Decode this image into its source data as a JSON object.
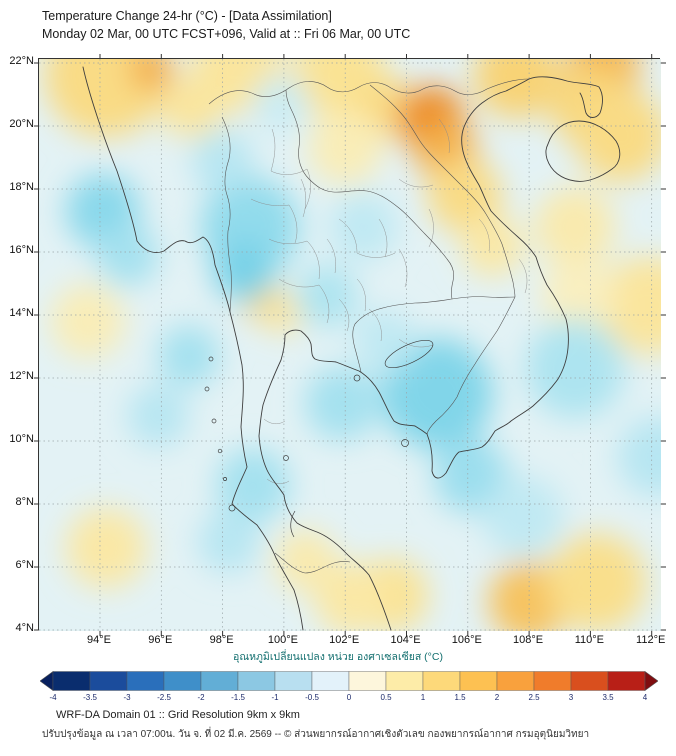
{
  "header": {
    "title": "Temperature Change 24-hr (°C) - [Data Assimilation]",
    "subtitle": "Monday 02 Mar, 00 UTC FCST+096, Valid at :: Fri 06 Mar, 00 UTC"
  },
  "map": {
    "lat_labels": [
      "22°N",
      "20°N",
      "18°N",
      "16°N",
      "14°N",
      "12°N",
      "10°N",
      "8°N",
      "6°N",
      "4°N"
    ],
    "lon_labels": [
      "94°E",
      "96°E",
      "98°E",
      "100°E",
      "102°E",
      "104°E",
      "106°E",
      "108°E",
      "110°E",
      "112°E"
    ]
  },
  "colorbar": {
    "title": "อุณหภูมิเปลี่ยนแปลง หน่วย องศาเซลเซียส (°C)",
    "unit": "°C",
    "range_min": "-4",
    "range_max": "4",
    "tick_labels": [
      "-4",
      "-3.5",
      "-3",
      "-2.5",
      "-2",
      "-1.5",
      "-1",
      "-0.5",
      "0",
      "0.5",
      "1",
      "1.5",
      "2",
      "2.5",
      "3",
      "3.5",
      "4"
    ],
    "arrow_left_color": "#08205e",
    "arrow_right_color": "#7f0d10",
    "segment_colors": [
      "#0a2d6e",
      "#1b4c9c",
      "#2a6fbb",
      "#3f8fc9",
      "#62aed6",
      "#8cc8e3",
      "#b8dff0",
      "#e3f2fa",
      "#fdf6dc",
      "#fdeca8",
      "#fdd97a",
      "#fdc152",
      "#f9a13d",
      "#f07c2b",
      "#d94f1e",
      "#b81f17"
    ]
  },
  "footer": {
    "line1": "WRF-DA Domain 01 :: Grid Resolution 9km x 9km",
    "line2": "ปรับปรุงข้อมูล ณ เวลา 07:00น. วัน จ. ที่ 02 มี.ค. 2569 -- © ส่วนพยากรณ์อากาศเชิงตัวเลข กองพยากรณ์อากาศ กรมอุตุนิยมวิทยา"
  },
  "chart_data": {
    "type": "heatmap",
    "title": "Temperature Change 24-hr (°C)",
    "model": "WRF-DA Domain 01",
    "valid_at": "Fri 06 Mar, 00 UTC",
    "lon_range": [
      92.0,
      112.3
    ],
    "lat_range": [
      4.0,
      22.1
    ],
    "grid_step_deg": 2,
    "value_range": [
      -4,
      4
    ],
    "base_value": 0,
    "base_color": "#e3f2f5",
    "field_palette": [
      [
        -1.5,
        "#6fcfe6"
      ],
      [
        -1.0,
        "#9bdeee"
      ],
      [
        -0.5,
        "#c9ecf4"
      ],
      [
        0,
        "#e7f4f1"
      ],
      [
        0.5,
        "#f9efc0"
      ],
      [
        1.0,
        "#fae394"
      ],
      [
        1.5,
        "#f7cf6e"
      ],
      [
        2.0,
        "#f4b14b"
      ],
      [
        2.5,
        "#ef952f"
      ],
      [
        3.0,
        "#e97f16"
      ]
    ],
    "anomalies": [
      {
        "lon": 94.2,
        "lat": 21.6,
        "value": 1.2,
        "radius_deg": 2.0
      },
      {
        "lon": 95.7,
        "lat": 21.8,
        "value": 2.1,
        "radius_deg": 0.7
      },
      {
        "lon": 98.5,
        "lat": 21.9,
        "value": 0.9,
        "radius_deg": 1.5
      },
      {
        "lon": 101.8,
        "lat": 21.7,
        "value": 1.0,
        "radius_deg": 1.5
      },
      {
        "lon": 103.3,
        "lat": 20.6,
        "value": 1.2,
        "radius_deg": 1.0
      },
      {
        "lon": 102.0,
        "lat": 19.3,
        "value": 0.6,
        "radius_deg": 1.2
      },
      {
        "lon": 104.8,
        "lat": 20.2,
        "value": 2.7,
        "radius_deg": 1.1
      },
      {
        "lon": 105.3,
        "lat": 19.2,
        "value": 2.0,
        "radius_deg": 1.0
      },
      {
        "lon": 105.9,
        "lat": 17.8,
        "value": 1.2,
        "radius_deg": 1.2
      },
      {
        "lon": 107.6,
        "lat": 21.6,
        "value": 1.4,
        "radius_deg": 1.4
      },
      {
        "lon": 110.4,
        "lat": 21.9,
        "value": 1.9,
        "radius_deg": 1.2
      },
      {
        "lon": 110.0,
        "lat": 20.6,
        "value": 1.3,
        "radius_deg": 1.3
      },
      {
        "lon": 111.0,
        "lat": 19.7,
        "value": 1.2,
        "radius_deg": 1.5
      },
      {
        "lon": 109.5,
        "lat": 16.8,
        "value": 0.7,
        "radius_deg": 1.3
      },
      {
        "lon": 111.9,
        "lat": 14.3,
        "value": 0.9,
        "radius_deg": 1.6
      },
      {
        "lon": 109.6,
        "lat": 14.6,
        "value": 0.5,
        "radius_deg": 1.2
      },
      {
        "lon": 106.8,
        "lat": 16.2,
        "value": 0.8,
        "radius_deg": 1.0
      },
      {
        "lon": 99.3,
        "lat": 14.5,
        "value": 1.3,
        "radius_deg": 0.7
      },
      {
        "lon": 100.0,
        "lat": 14.0,
        "value": 0.9,
        "radius_deg": 0.6
      },
      {
        "lon": 93.6,
        "lat": 13.8,
        "value": 0.6,
        "radius_deg": 1.2
      },
      {
        "lon": 97.0,
        "lat": 20.6,
        "value": 0.9,
        "radius_deg": 1.0
      },
      {
        "lon": 108.0,
        "lat": 4.9,
        "value": 1.7,
        "radius_deg": 1.3
      },
      {
        "lon": 110.2,
        "lat": 5.5,
        "value": 1.1,
        "radius_deg": 1.6
      },
      {
        "lon": 103.5,
        "lat": 5.1,
        "value": 1.0,
        "radius_deg": 1.2
      },
      {
        "lon": 102.2,
        "lat": 5.0,
        "value": 0.8,
        "radius_deg": 1.2
      },
      {
        "lon": 100.7,
        "lat": 6.2,
        "value": 0.7,
        "radius_deg": 1.0
      },
      {
        "lon": 94.2,
        "lat": 6.6,
        "value": 0.8,
        "radius_deg": 1.3
      },
      {
        "lon": 94.1,
        "lat": 17.3,
        "value": -1.2,
        "radius_deg": 1.2
      },
      {
        "lon": 94.9,
        "lat": 15.9,
        "value": -0.9,
        "radius_deg": 1.0
      },
      {
        "lon": 98.9,
        "lat": 16.8,
        "value": -1.1,
        "radius_deg": 1.6
      },
      {
        "lon": 98.7,
        "lat": 15.4,
        "value": -1.4,
        "radius_deg": 1.0
      },
      {
        "lon": 101.4,
        "lat": 14.6,
        "value": -0.8,
        "radius_deg": 1.0
      },
      {
        "lon": 98.0,
        "lat": 18.9,
        "value": -0.7,
        "radius_deg": 1.0
      },
      {
        "lon": 99.9,
        "lat": 20.7,
        "value": -0.5,
        "radius_deg": 0.9
      },
      {
        "lon": 105.0,
        "lat": 11.5,
        "value": -1.3,
        "radius_deg": 1.8
      },
      {
        "lon": 106.1,
        "lat": 8.9,
        "value": -1.0,
        "radius_deg": 1.2
      },
      {
        "lon": 101.9,
        "lat": 11.2,
        "value": -0.9,
        "radius_deg": 1.2
      },
      {
        "lon": 96.9,
        "lat": 12.7,
        "value": -0.9,
        "radius_deg": 1.0
      },
      {
        "lon": 95.9,
        "lat": 10.8,
        "value": -0.7,
        "radius_deg": 1.0
      },
      {
        "lon": 99.0,
        "lat": 8.6,
        "value": -0.9,
        "radius_deg": 1.2
      },
      {
        "lon": 98.2,
        "lat": 6.8,
        "value": -0.7,
        "radius_deg": 1.0
      },
      {
        "lon": 109.5,
        "lat": 12.3,
        "value": -0.8,
        "radius_deg": 1.6
      },
      {
        "lon": 112.2,
        "lat": 9.5,
        "value": -0.7,
        "radius_deg": 1.3
      },
      {
        "lon": 107.8,
        "lat": 7.6,
        "value": -0.6,
        "radius_deg": 1.3
      },
      {
        "lon": 103.3,
        "lat": 13.2,
        "value": -0.6,
        "radius_deg": 1.0
      },
      {
        "lon": 102.6,
        "lat": 16.8,
        "value": -0.6,
        "radius_deg": 1.1
      }
    ]
  }
}
